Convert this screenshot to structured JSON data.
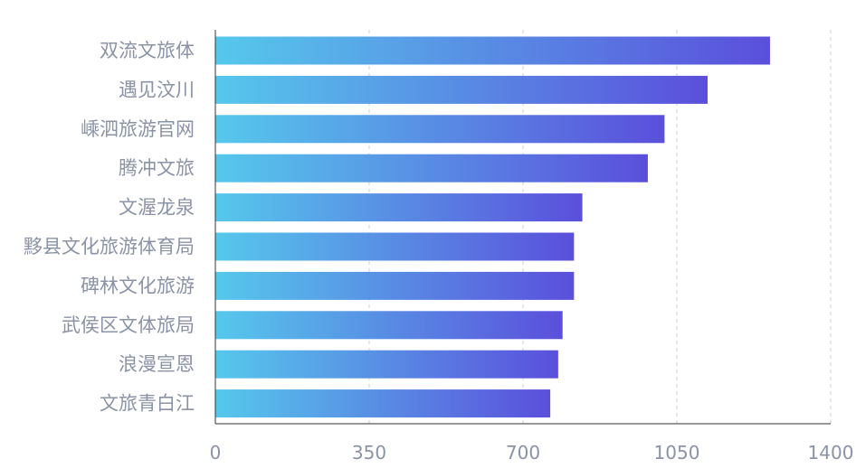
{
  "chart_data": {
    "type": "bar",
    "orientation": "horizontal",
    "categories": [
      "双流文旅体",
      "遇见汶川",
      "嵊泗旅游官网",
      "腾冲文旅",
      "文渥龙泉",
      "黟县文化旅游体育局",
      "碑林文化旅游",
      "武侯区文体旅局",
      "浪漫宣恩",
      "文旅青白江"
    ],
    "values": [
      1262,
      1120,
      1022,
      984,
      835,
      816,
      816,
      790,
      780,
      762
    ],
    "xlim": [
      0,
      1400
    ],
    "xticks": [
      "0",
      "350",
      "700",
      "1050",
      "1400"
    ],
    "grid": true,
    "colors": {
      "bar_start": "#56c8ec",
      "bar_end": "#5b4fdc",
      "label": "#8a93a6",
      "grid": "#c9ccd3",
      "axis": "#333333"
    }
  }
}
